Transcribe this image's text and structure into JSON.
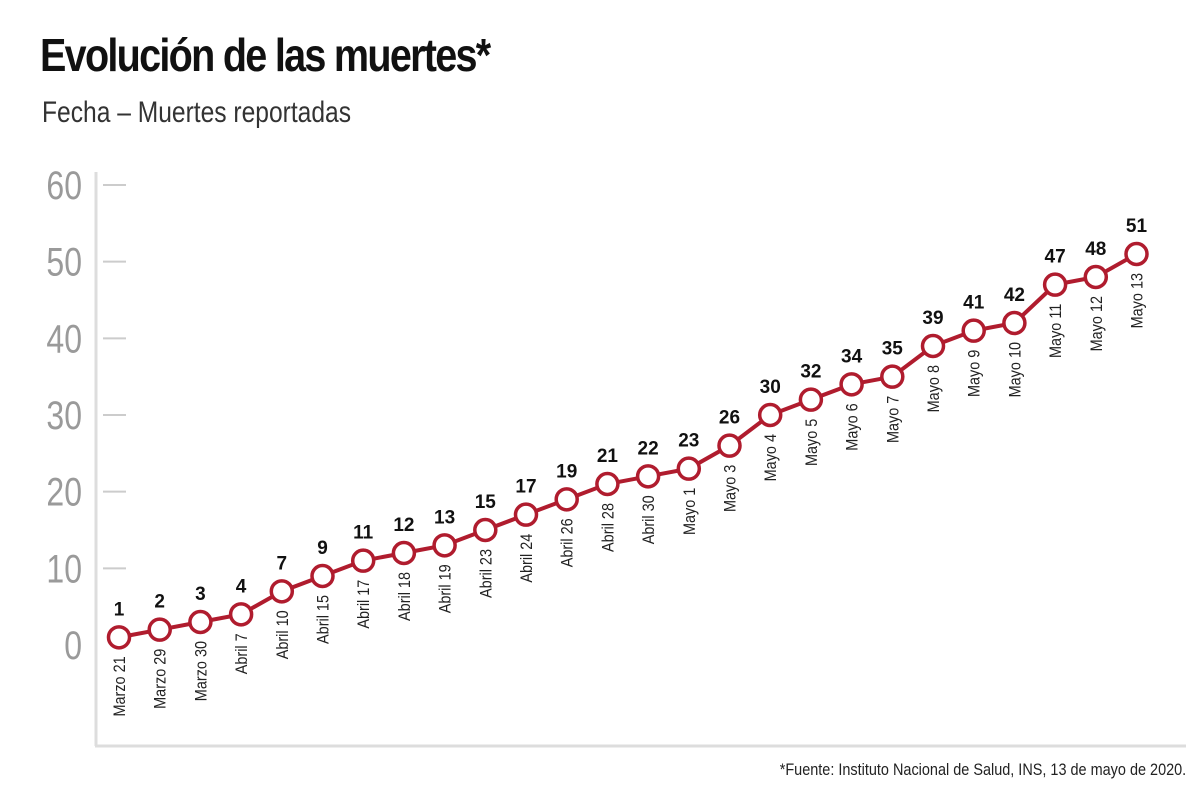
{
  "chart_data": {
    "type": "line",
    "title": "Evolución de las muertes*",
    "subtitle": "Fecha – Muertes reportadas",
    "xlabel": "",
    "ylabel": "",
    "ylim": [
      0,
      60
    ],
    "yticks": [
      0,
      10,
      20,
      30,
      40,
      50,
      60
    ],
    "grid": false,
    "categories": [
      "Marzo 21",
      "Marzo 29",
      "Marzo 30",
      "Abril 7",
      "Abril 10",
      "Abril 15",
      "Abril 17",
      "Abril 18",
      "Abril 19",
      "Abril 23",
      "Abril 24",
      "Abril 26",
      "Abril 28",
      "Abril 30",
      "Mayo 1",
      "Mayo 3",
      "Mayo 4",
      "Mayo 5",
      "Mayo 6",
      "Mayo 7",
      "Mayo 8",
      "Mayo 9",
      "Mayo 10",
      "Mayo 11",
      "Mayo 12",
      "Mayo 13"
    ],
    "values": [
      1,
      2,
      3,
      4,
      7,
      9,
      11,
      12,
      13,
      15,
      17,
      19,
      21,
      22,
      23,
      26,
      30,
      32,
      34,
      35,
      39,
      41,
      42,
      47,
      48,
      51
    ],
    "source": "*Fuente: Instituto Nacional de Salud, INS, 13 de mayo de 2020.",
    "line_color": "#b01c2e"
  }
}
